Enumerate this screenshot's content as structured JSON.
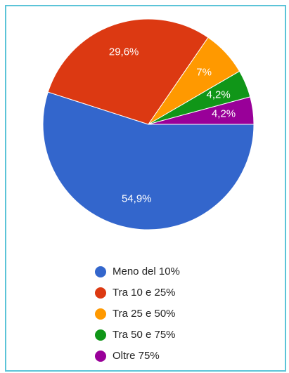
{
  "chart_data": {
    "type": "pie",
    "categories": [
      "Meno del 10%",
      "Tra 10 e 25%",
      "Tra 25 e 50%",
      "Tra 50 e 75%",
      "Oltre 75%"
    ],
    "values": [
      54.9,
      29.6,
      7,
      4.2,
      4.2
    ],
    "value_labels": [
      "54,9%",
      "29,6%",
      "7%",
      "4,2%",
      "4,2%"
    ],
    "colors": [
      "#3366cc",
      "#dc3912",
      "#ff9900",
      "#109618",
      "#990099"
    ]
  }
}
